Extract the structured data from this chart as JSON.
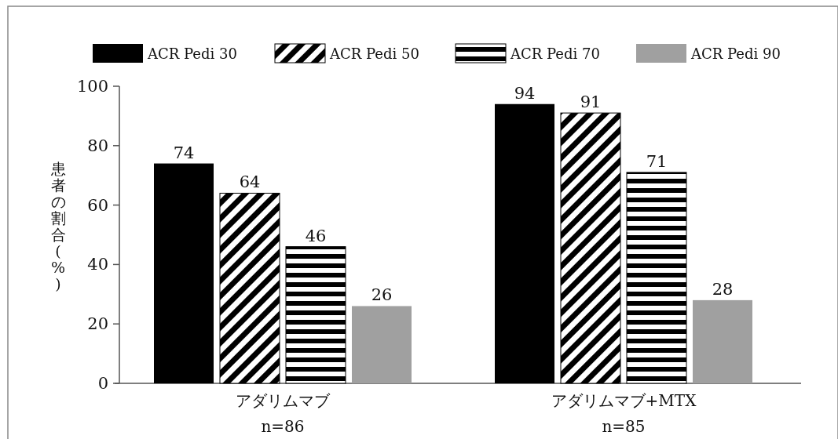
{
  "chart_data": {
    "type": "bar",
    "ylabel": "患者の割合(%)",
    "categories": [
      "アダリムマブ\nn=86",
      "アダリムマブ+MTX\nn=85"
    ],
    "series": [
      {
        "name": "ACR Pedi 30",
        "color": "#000000",
        "values": [
          74,
          94
        ]
      },
      {
        "name": "ACR Pedi 50",
        "color": "#000000",
        "values": [
          64,
          91
        ]
      },
      {
        "name": "ACR Pedi 70",
        "color": "#000000",
        "values": [
          46,
          71
        ]
      },
      {
        "name": "ACR Pedi 90",
        "color": "#a0a0a0",
        "values": [
          26,
          28
        ]
      }
    ],
    "ylim": [
      0,
      100
    ],
    "yticks": [
      0,
      20,
      40,
      60,
      80,
      100
    ],
    "data_labels": true,
    "legend": "top"
  }
}
